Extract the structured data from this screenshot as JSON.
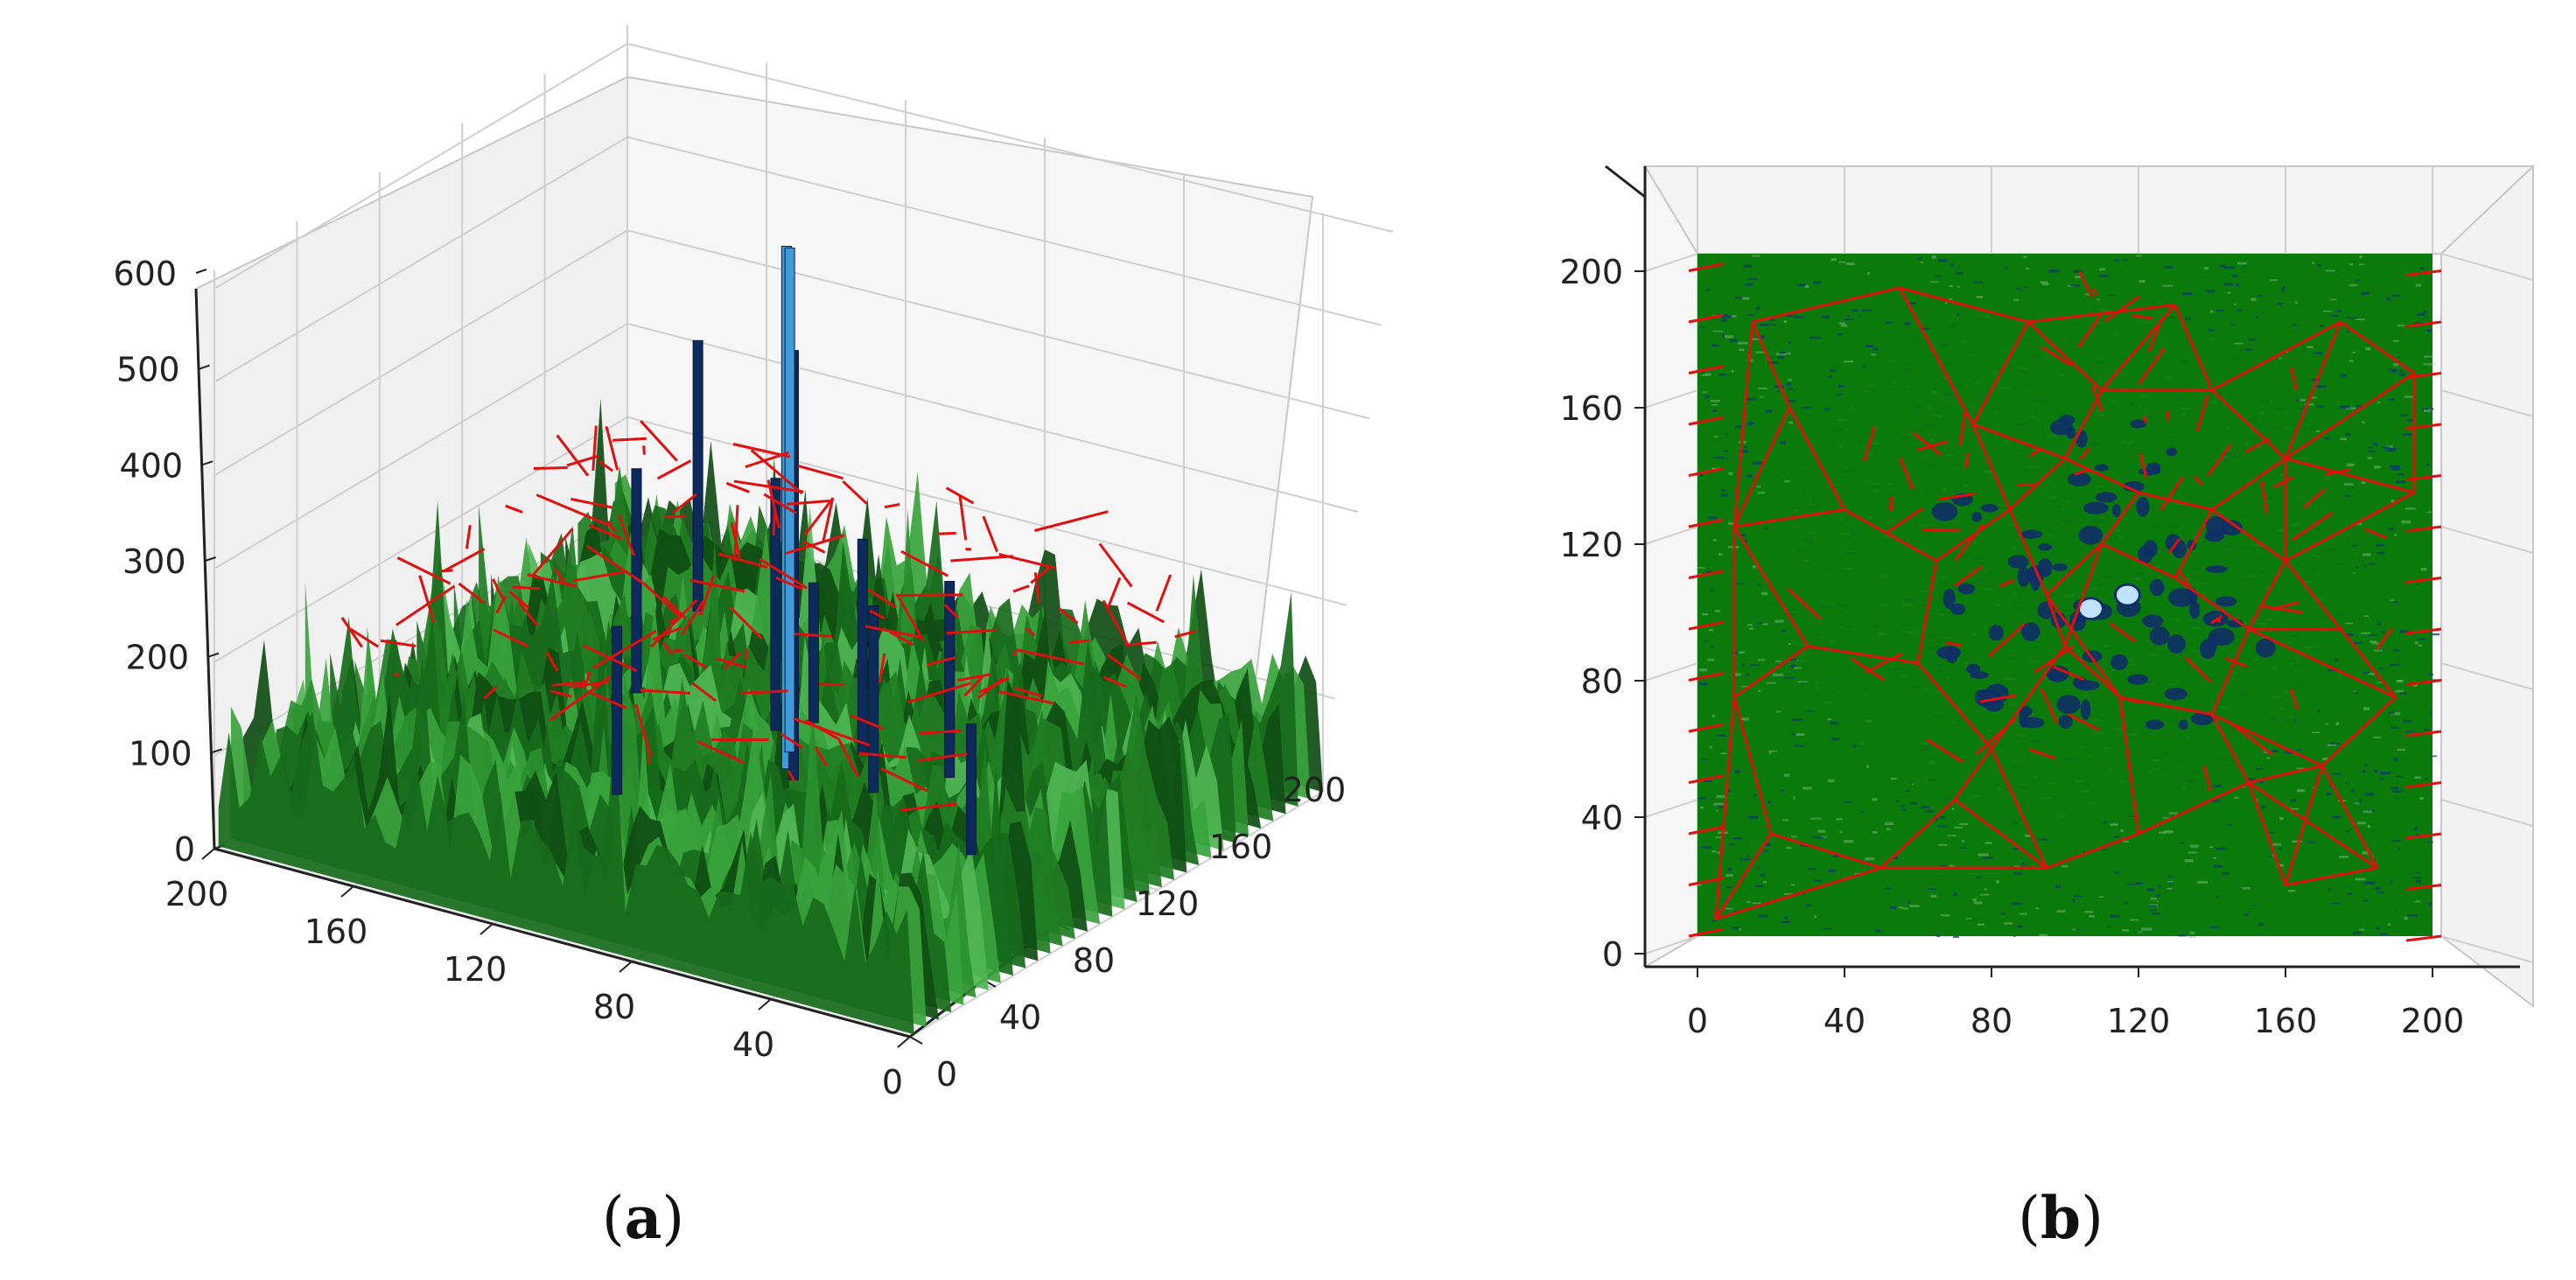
{
  "chart_data": [
    {
      "type": "surface3d",
      "panel_label": "a",
      "description_axes": "x/y grid 0-200, z height",
      "z_ticks": [
        "0",
        "100",
        "200",
        "300",
        "400",
        "500",
        "600"
      ],
      "x_ticks": [
        "200",
        "160",
        "120",
        "80",
        "40",
        "0"
      ],
      "y_ticks": [
        "0",
        "40",
        "80",
        "120",
        "160",
        "200"
      ],
      "zlim": [
        0,
        600
      ],
      "xlim": [
        0,
        200
      ],
      "ylim": [
        0,
        200
      ],
      "series": [
        {
          "name": "terrain surface",
          "color": "#1f6b1f"
        },
        {
          "name": "peaks",
          "color": "#0d2a5c",
          "highlight": "#3f9bd6",
          "x": [
            165,
            150,
            110,
            95,
            90,
            100,
            85,
            70,
            60,
            30,
            120,
            105
          ],
          "y": [
            175,
            120,
            120,
            100,
            95,
            110,
            120,
            100,
            120,
            80,
            60,
            130
          ],
          "z": [
            350,
            300,
            330,
            620,
            520,
            600,
            290,
            260,
            270,
            200,
            240,
            210
          ]
        },
        {
          "name": "network",
          "color": "#e01010"
        }
      ]
    },
    {
      "type": "heatmap",
      "panel_label": "b",
      "x_ticks": [
        "0",
        "40",
        "80",
        "120",
        "160",
        "200"
      ],
      "y_ticks": [
        "0",
        "40",
        "80",
        "120",
        "160",
        "200"
      ],
      "xlim": [
        0,
        200
      ],
      "ylim": [
        0,
        200
      ],
      "background_color": "#0a7a0a",
      "network_color": "#e01010",
      "network_sites": [
        [
          40,
          125
        ],
        [
          15,
          180
        ],
        [
          55,
          190
        ],
        [
          90,
          180
        ],
        [
          130,
          185
        ],
        [
          175,
          180
        ],
        [
          195,
          130
        ],
        [
          160,
          140
        ],
        [
          140,
          160
        ],
        [
          110,
          160
        ],
        [
          75,
          150
        ],
        [
          100,
          140
        ],
        [
          120,
          130
        ],
        [
          110,
          115
        ],
        [
          95,
          100
        ],
        [
          130,
          105
        ],
        [
          150,
          90
        ],
        [
          175,
          90
        ],
        [
          190,
          70
        ],
        [
          170,
          50
        ],
        [
          150,
          45
        ],
        [
          120,
          30
        ],
        [
          95,
          20
        ],
        [
          70,
          40
        ],
        [
          50,
          20
        ],
        [
          20,
          30
        ],
        [
          10,
          70
        ],
        [
          30,
          85
        ],
        [
          60,
          80
        ],
        [
          80,
          55
        ],
        [
          115,
          70
        ],
        [
          140,
          65
        ],
        [
          185,
          20
        ],
        [
          160,
          15
        ],
        [
          10,
          120
        ],
        [
          25,
          155
        ],
        [
          65,
          110
        ],
        [
          85,
          125
        ],
        [
          140,
          125
        ],
        [
          160,
          110
        ],
        [
          100,
          85
        ],
        [
          195,
          165
        ],
        [
          5,
          5
        ]
      ],
      "lake_points": [
        [
          107,
          96
        ],
        [
          117,
          100
        ]
      ]
    }
  ],
  "captions": {
    "a": {
      "open": "(",
      "letter": "a",
      "close": ")"
    },
    "b": {
      "open": "(",
      "letter": "b",
      "close": ")"
    }
  }
}
